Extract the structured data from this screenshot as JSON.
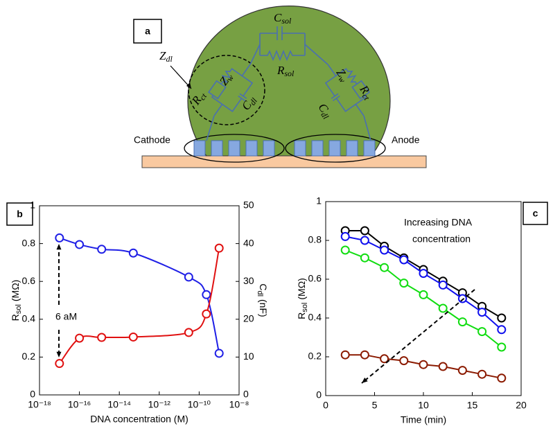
{
  "diagram": {
    "panel_label": "a",
    "components": [
      {
        "symbol": "C",
        "subscript": "sol"
      },
      {
        "symbol": "R",
        "subscript": "sol"
      },
      {
        "symbol": "Z",
        "subscript": "dl"
      },
      {
        "symbol": "R",
        "subscript": "ct"
      },
      {
        "symbol": "Z",
        "subscript": "w"
      },
      {
        "symbol": "C",
        "subscript": "dl"
      },
      {
        "symbol": "Z",
        "subscript": "w"
      },
      {
        "symbol": "C",
        "subscript": "dl"
      },
      {
        "symbol": "R",
        "subscript": "ct"
      }
    ],
    "electrodes": [
      "Cathode",
      "Anode"
    ]
  },
  "chart_data": [
    {
      "type": "line",
      "panel_label": "b",
      "smooth": true,
      "marker": "circle",
      "xscale": "log",
      "xlabel": "DNA concentration (M)",
      "ylabel": {
        "symbol": "R",
        "subscript": "sol",
        "unit": "(MΩ)"
      },
      "y2label": {
        "symbol": "C",
        "subscript": "dl",
        "unit": "(nF)"
      },
      "annotation": "6 aM",
      "x": [
        1e-17,
        1e-16,
        1.3e-15,
        5e-14,
        3e-11,
        2.3e-10,
        1e-09
      ],
      "series": [
        {
          "color": "#1f1fe6",
          "values": [
            0.83,
            0.795,
            0.77,
            0.75,
            0.623,
            0.53,
            0.22
          ]
        },
        {
          "color": "#e01010",
          "axis": "y2",
          "values": [
            8.3,
            15,
            15.2,
            15.3,
            16.5,
            21.4,
            38.8
          ]
        }
      ],
      "xlim": [
        1e-18,
        1e-08
      ],
      "xticks": [
        {
          "value": 1e-18,
          "label": "10⁻¹⁸"
        },
        {
          "value": 1e-16,
          "label": "10⁻¹⁶"
        },
        {
          "value": 1e-14,
          "label": "10⁻¹⁴"
        },
        {
          "value": 1e-12,
          "label": "10⁻¹²"
        },
        {
          "value": 1e-10,
          "label": "10⁻¹⁰"
        },
        {
          "value": 1e-08,
          "label": "10⁻⁸"
        }
      ],
      "ylim": [
        0,
        1
      ],
      "yticks": [
        0,
        0.2,
        0.4,
        0.6,
        0.8,
        1
      ],
      "y2lim": [
        0,
        50
      ],
      "y2ticks": [
        0,
        10,
        20,
        30,
        40,
        50
      ]
    },
    {
      "type": "line",
      "panel_label": "c",
      "smooth": false,
      "marker": "circle",
      "xlabel": "Time (min)",
      "ylabel": {
        "symbol": "R",
        "subscript": "sol",
        "unit": "(MΩ)"
      },
      "annotation": [
        "Increasing DNA",
        "concentration"
      ],
      "x": [
        2,
        4,
        6,
        8,
        10,
        12,
        14,
        16,
        18
      ],
      "series": [
        {
          "color": "#000000",
          "values": [
            0.85,
            0.85,
            0.77,
            0.71,
            0.65,
            0.59,
            0.53,
            0.46,
            0.4
          ]
        },
        {
          "color": "#1010ee",
          "values": [
            0.82,
            0.8,
            0.75,
            0.7,
            0.63,
            0.57,
            0.5,
            0.43,
            0.34
          ]
        },
        {
          "color": "#10dd10",
          "values": [
            0.75,
            0.71,
            0.66,
            0.58,
            0.52,
            0.45,
            0.38,
            0.33,
            0.25
          ]
        },
        {
          "color": "#8b1a00",
          "values": [
            0.21,
            0.21,
            0.19,
            0.18,
            0.16,
            0.15,
            0.13,
            0.11,
            0.09
          ]
        }
      ],
      "xlim": [
        0,
        20
      ],
      "xticks": [
        0,
        5,
        10,
        15,
        20
      ],
      "ylim": [
        0,
        1
      ],
      "yticks": [
        0,
        0.2,
        0.4,
        0.6,
        0.8,
        1
      ]
    }
  ]
}
